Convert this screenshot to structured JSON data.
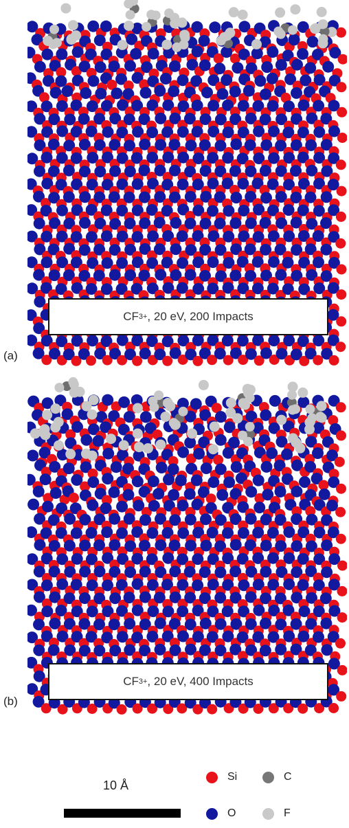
{
  "panels": [
    {
      "letter": "(a)",
      "ion": "CF",
      "sub": "3",
      "sup": "+",
      "rest": ", 20 eV, 200 Impacts"
    },
    {
      "letter": "(b)",
      "ion": "CF",
      "sub": "3",
      "sup": "+",
      "rest": ", 20 eV, 400 Impacts"
    }
  ],
  "scale_bar": {
    "label": "10 Å"
  },
  "legend": [
    {
      "symbol": "Si",
      "color": "#e8131a"
    },
    {
      "symbol": "C",
      "color": "#777777"
    },
    {
      "symbol": "O",
      "color": "#12199e"
    },
    {
      "symbol": "F",
      "color": "#c9c9c9"
    }
  ],
  "colors": {
    "si": "#e8131a",
    "o": "#12199e",
    "c": "#6f6f6f",
    "f": "#c8c8c8"
  }
}
